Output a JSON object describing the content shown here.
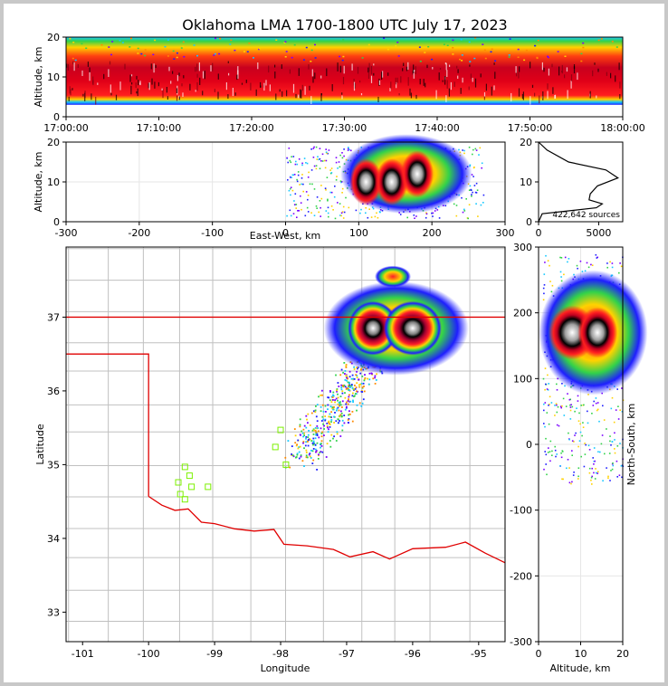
{
  "title": "Oklahoma LMA 1700-1800 UTC July 17, 2023",
  "chart_data": [
    {
      "type": "heatmap",
      "panel": "altitude-time",
      "ylabel": "Altitude, km",
      "ylim": [
        0,
        20
      ],
      "yticks": [
        "0",
        "10",
        "20"
      ],
      "xticks": [
        "17:00:00",
        "17:10:00",
        "17:20:00",
        "17:30:00",
        "17:40:00",
        "17:50:00",
        "18:00:00"
      ],
      "xlim": [
        "17:00:00",
        "18:00:00"
      ],
      "density_band_km": [
        3,
        20
      ],
      "core_band_km": [
        5,
        14
      ]
    },
    {
      "type": "heatmap",
      "panel": "altitude-east-west",
      "xlabel": "East-West, km",
      "ylabel": "Altitude, km",
      "xlim": [
        -300,
        300
      ],
      "ylim": [
        0,
        20
      ],
      "xticks": [
        "-300",
        "-200",
        "-100",
        "0",
        "100",
        "200",
        "300"
      ],
      "yticks": [
        "0",
        "10",
        "20"
      ],
      "cores": [
        {
          "x": 110,
          "z": 10
        },
        {
          "x": 145,
          "z": 10
        },
        {
          "x": 180,
          "z": 12
        }
      ]
    },
    {
      "type": "line",
      "panel": "altitude-histogram",
      "annotation": "422,642 sources",
      "xlim": [
        0,
        7000
      ],
      "ylim": [
        0,
        20
      ],
      "xticks": [
        "0",
        "5000"
      ],
      "yticks": [
        "0",
        "10",
        "20"
      ],
      "profile": [
        {
          "count": 0,
          "alt": 0
        },
        {
          "count": 300,
          "alt": 2
        },
        {
          "count": 4800,
          "alt": 3.5
        },
        {
          "count": 5300,
          "alt": 4.5
        },
        {
          "count": 4200,
          "alt": 5.5
        },
        {
          "count": 4300,
          "alt": 7
        },
        {
          "count": 4900,
          "alt": 9
        },
        {
          "count": 6600,
          "alt": 11
        },
        {
          "count": 5600,
          "alt": 13
        },
        {
          "count": 2500,
          "alt": 15
        },
        {
          "count": 700,
          "alt": 18
        },
        {
          "count": 0,
          "alt": 20
        }
      ]
    },
    {
      "type": "scatter",
      "panel": "plan-view-map",
      "xlabel": "Longitude",
      "ylabel": "Latitude",
      "xlim": [
        -101.25,
        -94.6
      ],
      "ylim": [
        32.6,
        37.95
      ],
      "xticks": [
        "-101",
        "-100",
        "-99",
        "-98",
        "-97",
        "-96",
        "-95"
      ],
      "yticks": [
        "33",
        "34",
        "35",
        "36",
        "37"
      ],
      "state_border_color": "#e00000",
      "county_line_color": "#c0c0c0",
      "stations": [
        {
          "lon": -99.45,
          "lat": 34.97
        },
        {
          "lon": -99.38,
          "lat": 34.85
        },
        {
          "lon": -99.55,
          "lat": 34.76
        },
        {
          "lon": -99.35,
          "lat": 34.7
        },
        {
          "lon": -99.1,
          "lat": 34.7
        },
        {
          "lon": -99.52,
          "lat": 34.6
        },
        {
          "lon": -99.45,
          "lat": 34.53
        },
        {
          "lon": -98.0,
          "lat": 35.47
        },
        {
          "lon": -98.08,
          "lat": 35.24
        },
        {
          "lon": -97.92,
          "lat": 35.0
        }
      ],
      "storm_core": {
        "lon": -96.25,
        "lat": 36.85
      }
    },
    {
      "type": "heatmap",
      "panel": "north-south-altitude",
      "xlabel": "Altitude, km",
      "ylabel": "North-South, km",
      "xlim": [
        0,
        20
      ],
      "ylim": [
        -300,
        300
      ],
      "xticks": [
        "0",
        "10",
        "20"
      ],
      "yticks": [
        "-300",
        "-200",
        "-100",
        "0",
        "100",
        "200",
        "300"
      ],
      "core_y_km": 170
    }
  ]
}
